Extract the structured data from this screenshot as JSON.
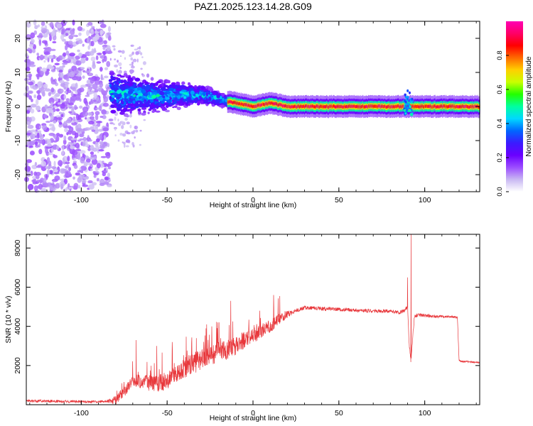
{
  "figure_title": "PAZ1.2025.123.14.28.G09",
  "colorbar": {
    "label": "Normalized spectral amplitude",
    "ticks": [
      "0.0",
      "0.2",
      "0.4",
      "0.6",
      "0.8"
    ],
    "tick_values": [
      0.0,
      0.2,
      0.4,
      0.6,
      0.8
    ],
    "range": [
      0.0,
      1.0
    ],
    "colors": [
      "#ffffff",
      "#c9b8f3",
      "#9c4dff",
      "#6a00ff",
      "#3b1bff",
      "#0066ff",
      "#00d8ff",
      "#00ffa0",
      "#22ff00",
      "#c8ff00",
      "#ffd000",
      "#ff6a00",
      "#ff0000",
      "#ff0066",
      "#ff00b4"
    ]
  },
  "chart_data": [
    {
      "type": "heatmap",
      "title": "",
      "xlabel": "Height of straight line (km)",
      "ylabel": "Frequency (Hz)",
      "xlim": [
        -132,
        132
      ],
      "ylim": [
        -25,
        25
      ],
      "x_ticks": [
        -100,
        -50,
        0,
        50,
        100
      ],
      "x_tick_labels": [
        "-100",
        "-50",
        "0",
        "50",
        "100"
      ],
      "y_ticks": [
        -20,
        -10,
        0,
        10,
        20
      ],
      "y_tick_labels": [
        "-20",
        "-10",
        "0",
        "10",
        "20"
      ],
      "regions": [
        {
          "name": "noise",
          "x_range": [
            -132,
            -83
          ],
          "freq_range": [
            -25,
            25
          ],
          "amplitude_range": [
            0.05,
            0.15
          ]
        },
        {
          "name": "turbulent-signal",
          "x_range": [
            -83,
            -15
          ],
          "freq_center": [
            [
              -83,
              4
            ],
            [
              -60,
              3
            ],
            [
              -40,
              3.5
            ],
            [
              -25,
              3
            ],
            [
              -15,
              1.5
            ]
          ],
          "half_width_hz": [
            6,
            1.5
          ],
          "amplitude_range": [
            0.1,
            0.45
          ]
        },
        {
          "name": "stable-signal",
          "x_range": [
            -15,
            132
          ],
          "freq_center": [
            [
              -15,
              1.5
            ],
            [
              0,
              0
            ],
            [
              10,
              1
            ],
            [
              20,
              0
            ],
            [
              90,
              0
            ],
            [
              132,
              0
            ]
          ],
          "half_width_hz": 1.2,
          "amplitude_range": [
            0.8,
            0.95
          ]
        },
        {
          "name": "disturbance",
          "x_range": [
            88,
            93
          ],
          "freq_center": [
            [
              88,
              0
            ],
            [
              90,
              2
            ],
            [
              93,
              0
            ]
          ],
          "half_width_hz": 3,
          "amplitude_range": [
            0.3,
            0.4
          ]
        }
      ]
    },
    {
      "type": "line",
      "title": "",
      "xlabel": "Height of straight line (km)",
      "ylabel": "SNR (10 * v/v)",
      "xlim": [
        -132,
        132
      ],
      "ylim": [
        0,
        8700
      ],
      "x_ticks": [
        -100,
        -50,
        0,
        50,
        100
      ],
      "x_tick_labels": [
        "-100",
        "-50",
        "0",
        "50",
        "100"
      ],
      "y_ticks": [
        2000,
        4000,
        6000,
        8000
      ],
      "y_tick_labels": [
        "2000",
        "4000",
        "6000",
        "8000"
      ],
      "series": [
        {
          "name": "SNR",
          "color": "#e8383c",
          "x": [
            -132,
            -110,
            -90,
            -80,
            -75,
            -70,
            -65,
            -60,
            -55,
            -50,
            -45,
            -40,
            -35,
            -30,
            -25,
            -20,
            -15,
            -10,
            -5,
            0,
            5,
            10,
            15,
            20,
            25,
            30,
            35,
            40,
            45,
            50,
            55,
            60,
            65,
            70,
            75,
            80,
            85,
            88,
            90,
            91,
            92,
            93,
            94,
            96,
            100,
            105,
            110,
            115,
            119,
            120,
            121,
            125,
            132
          ],
          "y": [
            200,
            170,
            150,
            200,
            700,
            1200,
            1200,
            1100,
            1100,
            1200,
            1500,
            1900,
            2100,
            2300,
            2500,
            2700,
            2800,
            3000,
            3300,
            3500,
            3800,
            4000,
            4350,
            4600,
            4800,
            4950,
            4950,
            4900,
            4900,
            4870,
            4850,
            4820,
            4800,
            4780,
            4780,
            4780,
            4700,
            4800,
            5000,
            3000,
            2200,
            3500,
            4500,
            4600,
            4550,
            4520,
            4500,
            4500,
            4450,
            2300,
            2200,
            2200,
            2150
          ],
          "noise_amplitude": [
            [
              -132,
              150
            ],
            [
              -85,
              120
            ],
            [
              -80,
              500
            ],
            [
              -60,
              800
            ],
            [
              -40,
              1100
            ],
            [
              -15,
              1000
            ],
            [
              15,
              600
            ],
            [
              25,
              200
            ],
            [
              85,
              180
            ],
            [
              95,
              200
            ],
            [
              121,
              80
            ],
            [
              132,
              80
            ]
          ],
          "spikes": [
            [
              -68,
              3300
            ],
            [
              -56,
              3000
            ],
            [
              -47,
              3200
            ],
            [
              -33,
              3400
            ],
            [
              -27,
              4100
            ],
            [
              -24,
              4000
            ],
            [
              -13,
              5300
            ],
            [
              12,
              5600
            ],
            [
              90,
              6500
            ],
            [
              92,
              8700
            ]
          ]
        }
      ]
    }
  ]
}
